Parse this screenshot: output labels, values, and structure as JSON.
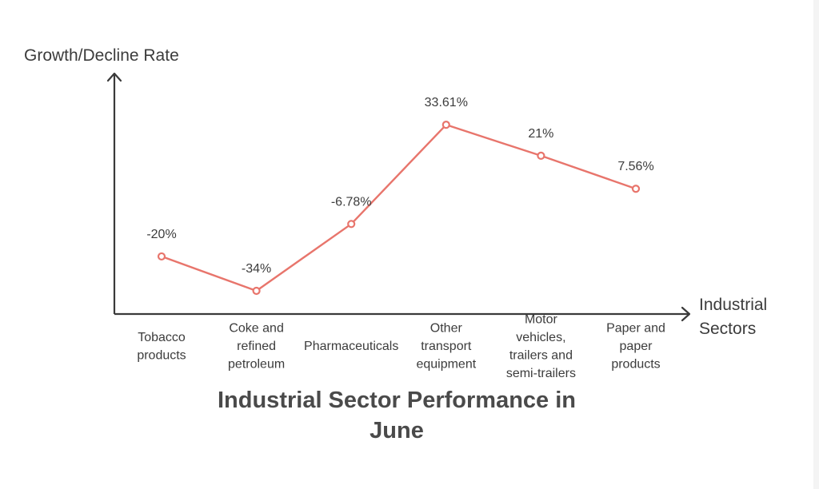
{
  "chart_data": {
    "type": "line",
    "title": "Industrial Sector Performance in June",
    "xlabel": "Industrial Sectors",
    "ylabel": "Growth/Decline Rate",
    "categories": [
      "Tobacco products",
      "Coke and refined petroleum",
      "Pharmaceuticals",
      "Other transport equipment",
      "Motor vehicles, trailers and semi-trailers",
      "Paper and paper products"
    ],
    "category_label_lines": [
      [
        "Tobacco",
        "products"
      ],
      [
        "Coke and",
        "refined",
        "petroleum"
      ],
      [
        "Pharmaceuticals"
      ],
      [
        "Other",
        "transport",
        "equipment"
      ],
      [
        "Motor",
        "vehicles,",
        "trailers and",
        "semi-trailers"
      ],
      [
        "Paper and",
        "paper",
        "products"
      ]
    ],
    "xlabel_lines": [
      "Industrial",
      "Sectors"
    ],
    "values": [
      -20,
      -34,
      -6.78,
      33.61,
      21,
      7.56
    ],
    "value_labels": [
      "-20%",
      "-34%",
      "-6.78%",
      "33.61%",
      "21%",
      "7.56%"
    ],
    "ylim": [
      -48,
      74
    ],
    "grid": false,
    "legend": "none",
    "colors": {
      "line": "#e8756c",
      "axis": "#3a3a3a",
      "text": "#3c3c3c",
      "title": "#4a4a4a"
    }
  }
}
